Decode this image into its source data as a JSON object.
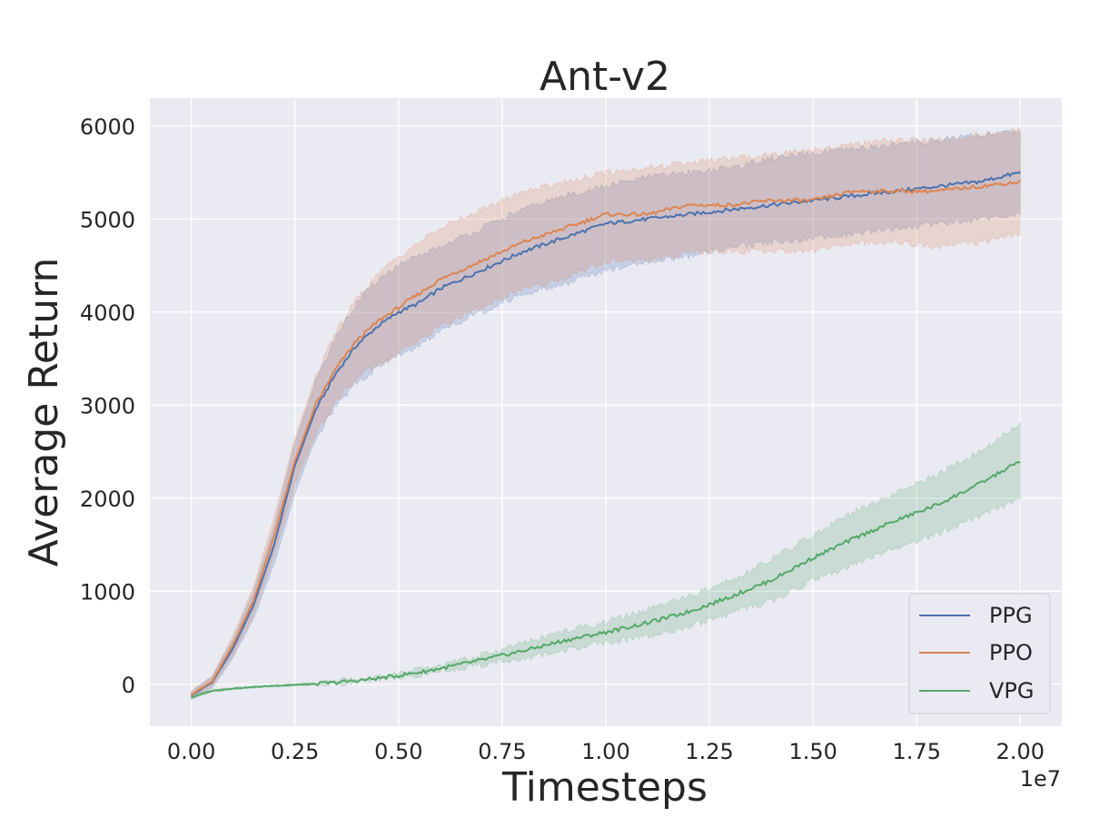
{
  "chart_data": {
    "type": "line",
    "title": "Ant-v2",
    "xlabel": "Timesteps",
    "ylabel": "Average Return",
    "x_offset_label": "1e7",
    "x_scale": 10000000,
    "xlim": [
      -0.1,
      2.1
    ],
    "ylim": [
      -450,
      6300
    ],
    "x_ticks": [
      0.0,
      0.25,
      0.5,
      0.75,
      1.0,
      1.25,
      1.5,
      1.75,
      2.0
    ],
    "x_tick_labels": [
      "0.00",
      "0.25",
      "0.50",
      "0.75",
      "1.00",
      "1.25",
      "1.50",
      "1.75",
      "2.00"
    ],
    "y_ticks": [
      0,
      1000,
      2000,
      3000,
      4000,
      5000,
      6000
    ],
    "y_tick_labels": [
      "0",
      "1000",
      "2000",
      "3000",
      "4000",
      "5000",
      "6000"
    ],
    "grid": true,
    "legend_position": "bottom-right",
    "x": [
      0.0,
      0.05,
      0.1,
      0.15,
      0.2,
      0.25,
      0.3,
      0.35,
      0.4,
      0.45,
      0.5,
      0.55,
      0.6,
      0.7,
      0.8,
      0.9,
      1.0,
      1.1,
      1.2,
      1.3,
      1.4,
      1.5,
      1.6,
      1.7,
      1.8,
      1.9,
      2.0
    ],
    "series": [
      {
        "name": "PPG",
        "color": "#4c72b0",
        "values": [
          -120,
          20,
          380,
          850,
          1500,
          2350,
          2950,
          3350,
          3650,
          3850,
          4000,
          4100,
          4250,
          4450,
          4650,
          4800,
          4950,
          5000,
          5050,
          5100,
          5150,
          5200,
          5250,
          5300,
          5350,
          5400,
          5500
        ],
        "upper": [
          -80,
          80,
          480,
          1000,
          1700,
          2600,
          3250,
          3750,
          4100,
          4350,
          4500,
          4600,
          4700,
          4900,
          5100,
          5250,
          5350,
          5450,
          5500,
          5550,
          5650,
          5700,
          5750,
          5800,
          5850,
          5900,
          5950
        ],
        "lower": [
          -160,
          -40,
          280,
          700,
          1300,
          2050,
          2650,
          3000,
          3250,
          3400,
          3550,
          3650,
          3800,
          4000,
          4200,
          4300,
          4450,
          4550,
          4600,
          4700,
          4750,
          4800,
          4850,
          4900,
          4950,
          5000,
          5050
        ]
      },
      {
        "name": "PPO",
        "color": "#dd8452",
        "values": [
          -110,
          30,
          420,
          900,
          1600,
          2400,
          3000,
          3400,
          3700,
          3900,
          4050,
          4200,
          4350,
          4550,
          4750,
          4900,
          5050,
          5050,
          5150,
          5150,
          5200,
          5200,
          5300,
          5300,
          5300,
          5350,
          5400
        ],
        "upper": [
          -70,
          90,
          520,
          1050,
          1800,
          2650,
          3300,
          3800,
          4150,
          4400,
          4600,
          4750,
          4900,
          5100,
          5300,
          5400,
          5500,
          5550,
          5600,
          5650,
          5700,
          5750,
          5800,
          5850,
          5850,
          5900,
          5950
        ],
        "lower": [
          -150,
          -30,
          320,
          750,
          1400,
          2150,
          2700,
          3050,
          3300,
          3450,
          3550,
          3700,
          3850,
          4050,
          4250,
          4350,
          4550,
          4550,
          4650,
          4650,
          4650,
          4650,
          4750,
          4750,
          4700,
          4750,
          4850
        ]
      },
      {
        "name": "VPG",
        "color": "#55a868",
        "values": [
          -140,
          -70,
          -45,
          -30,
          -15,
          -5,
          5,
          20,
          40,
          65,
          95,
          130,
          170,
          260,
          360,
          470,
          560,
          660,
          780,
          940,
          1120,
          1360,
          1570,
          1760,
          1930,
          2150,
          2400
        ],
        "upper": [
          -120,
          -55,
          -35,
          -20,
          -5,
          5,
          15,
          30,
          55,
          80,
          115,
          155,
          200,
          310,
          440,
          570,
          670,
          800,
          940,
          1120,
          1340,
          1600,
          1850,
          2050,
          2250,
          2500,
          2800
        ],
        "lower": [
          -160,
          -85,
          -55,
          -40,
          -25,
          -15,
          -5,
          10,
          25,
          50,
          75,
          105,
          140,
          210,
          280,
          370,
          450,
          520,
          620,
          760,
          900,
          1120,
          1300,
          1470,
          1620,
          1800,
          2000
        ]
      }
    ]
  }
}
